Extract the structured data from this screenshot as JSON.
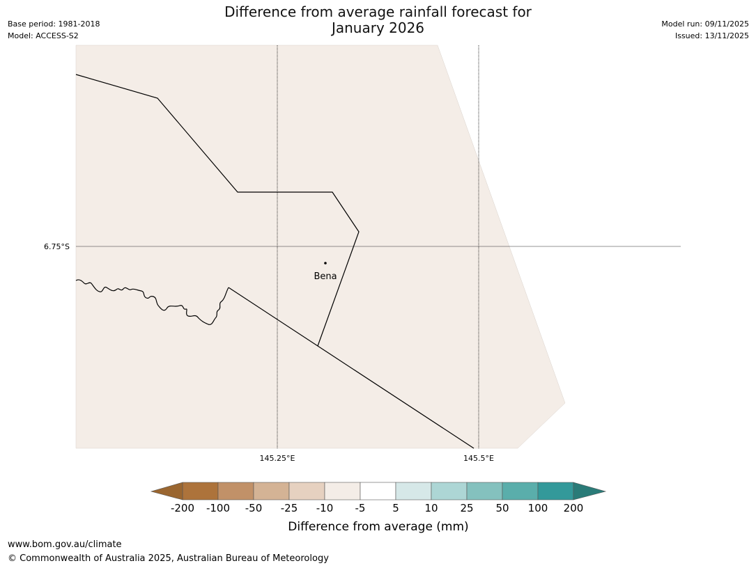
{
  "title": {
    "line1": "Difference from average rainfall forecast for",
    "line2": "January 2026"
  },
  "meta_left": {
    "base_period": "Base period: 1981-2018",
    "model": "Model: ACCESS-S2"
  },
  "meta_right": {
    "model_run": "Model run: 09/11/2025",
    "issued": "Issued: 13/11/2025"
  },
  "map": {
    "fill_color": "#f4ede7",
    "lat_labels": [
      "6.75°S"
    ],
    "lon_labels": [
      "145.25°E",
      "145.5°E"
    ],
    "place": {
      "name": "Bena"
    }
  },
  "colorbar": {
    "title": "Difference from average (mm)",
    "tick_labels": [
      "-200",
      "-100",
      "-50",
      "-25",
      "-10",
      "-5",
      "5",
      "10",
      "25",
      "50",
      "100",
      "200"
    ],
    "low_extend_color": "#9a6630",
    "high_extend_color": "#2a7b78",
    "bins": [
      {
        "from": "-200",
        "to": "-100",
        "color": "#ad733b"
      },
      {
        "from": "-100",
        "to": "-50",
        "color": "#c19168"
      },
      {
        "from": "-50",
        "to": "-25",
        "color": "#d4b395"
      },
      {
        "from": "-25",
        "to": "-10",
        "color": "#e6d1c0"
      },
      {
        "from": "-10",
        "to": "-5",
        "color": "#f4ede7"
      },
      {
        "from": "-5",
        "to": "5",
        "color": "#ffffff"
      },
      {
        "from": "5",
        "to": "10",
        "color": "#d6e8e8"
      },
      {
        "from": "10",
        "to": "25",
        "color": "#add6d5"
      },
      {
        "from": "25",
        "to": "50",
        "color": "#84c1be"
      },
      {
        "from": "50",
        "to": "100",
        "color": "#5aaeab"
      },
      {
        "from": "100",
        "to": "200",
        "color": "#33999a"
      }
    ]
  },
  "footer": {
    "url": "www.bom.gov.au/climate",
    "copyright": "© Commonwealth of Australia 2025, Australian Bureau of Meteorology"
  }
}
